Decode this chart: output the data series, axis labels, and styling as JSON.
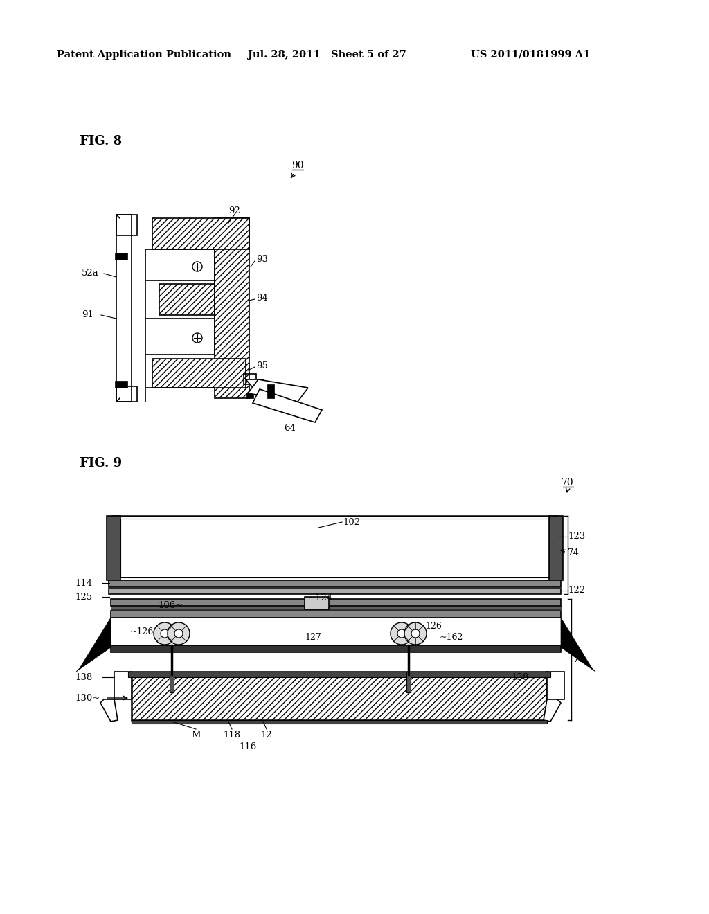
{
  "header_left": "Patent Application Publication",
  "header_mid": "Jul. 28, 2011   Sheet 5 of 27",
  "header_right": "US 2011/0181999 A1",
  "fig8_label": "FIG. 8",
  "fig9_label": "FIG. 9",
  "bg_color": "#ffffff"
}
